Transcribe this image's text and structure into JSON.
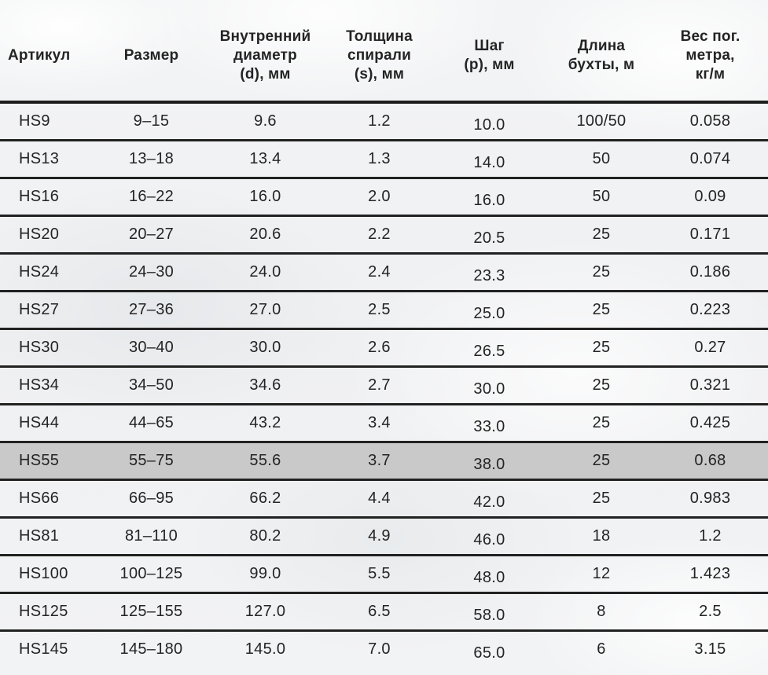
{
  "colors": {
    "highlight_row": "#c9c9c9",
    "separator_line": "#212121",
    "text": "#242424",
    "background": "#f0f1f2"
  },
  "table": {
    "columns": [
      {
        "key": "article",
        "label": "Артикул"
      },
      {
        "key": "size",
        "label": "Размер"
      },
      {
        "key": "diameter",
        "label": "Внутренний\nдиаметр\n(d), мм"
      },
      {
        "key": "thickness",
        "label": "Толщина\nспирали\n(s), мм"
      },
      {
        "key": "pitch",
        "label": "Шаг\n(p), мм"
      },
      {
        "key": "coil_length",
        "label": "Длина\nбухты, м"
      },
      {
        "key": "weight",
        "label": "Вес пог.\nметра,\nкг/м"
      }
    ],
    "highlighted_article": "HS55",
    "rows": [
      {
        "article": "HS9",
        "size": "9–15",
        "diameter": "9.6",
        "thickness": "1.2",
        "pitch": "10.0",
        "coil_length": "100/50",
        "weight": "0.058",
        "highlight": false
      },
      {
        "article": "HS13",
        "size": "13–18",
        "diameter": "13.4",
        "thickness": "1.3",
        "pitch": "14.0",
        "coil_length": "50",
        "weight": "0.074",
        "highlight": false
      },
      {
        "article": "HS16",
        "size": "16–22",
        "diameter": "16.0",
        "thickness": "2.0",
        "pitch": "16.0",
        "coil_length": "50",
        "weight": "0.09",
        "highlight": false
      },
      {
        "article": "HS20",
        "size": "20–27",
        "diameter": "20.6",
        "thickness": "2.2",
        "pitch": "20.5",
        "coil_length": "25",
        "weight": "0.171",
        "highlight": false
      },
      {
        "article": "HS24",
        "size": "24–30",
        "diameter": "24.0",
        "thickness": "2.4",
        "pitch": "23.3",
        "coil_length": "25",
        "weight": "0.186",
        "highlight": false
      },
      {
        "article": "HS27",
        "size": "27–36",
        "diameter": "27.0",
        "thickness": "2.5",
        "pitch": "25.0",
        "coil_length": "25",
        "weight": "0.223",
        "highlight": false
      },
      {
        "article": "HS30",
        "size": "30–40",
        "diameter": "30.0",
        "thickness": "2.6",
        "pitch": "26.5",
        "coil_length": "25",
        "weight": "0.27",
        "highlight": false
      },
      {
        "article": "HS34",
        "size": "34–50",
        "diameter": "34.6",
        "thickness": "2.7",
        "pitch": "30.0",
        "coil_length": "25",
        "weight": "0.321",
        "highlight": false
      },
      {
        "article": "HS44",
        "size": "44–65",
        "diameter": "43.2",
        "thickness": "3.4",
        "pitch": "33.0",
        "coil_length": "25",
        "weight": "0.425",
        "highlight": false
      },
      {
        "article": "HS55",
        "size": "55–75",
        "diameter": "55.6",
        "thickness": "3.7",
        "pitch": "38.0",
        "coil_length": "25",
        "weight": "0.68",
        "highlight": true
      },
      {
        "article": "HS66",
        "size": "66–95",
        "diameter": "66.2",
        "thickness": "4.4",
        "pitch": "42.0",
        "coil_length": "25",
        "weight": "0.983",
        "highlight": false
      },
      {
        "article": "HS81",
        "size": "81–110",
        "diameter": "80.2",
        "thickness": "4.9",
        "pitch": "46.0",
        "coil_length": "18",
        "weight": "1.2",
        "highlight": false
      },
      {
        "article": "HS100",
        "size": "100–125",
        "diameter": "99.0",
        "thickness": "5.5",
        "pitch": "48.0",
        "coil_length": "12",
        "weight": "1.423",
        "highlight": false
      },
      {
        "article": "HS125",
        "size": "125–155",
        "diameter": "127.0",
        "thickness": "6.5",
        "pitch": "58.0",
        "coil_length": "8",
        "weight": "2.5",
        "highlight": false
      },
      {
        "article": "HS145",
        "size": "145–180",
        "diameter": "145.0",
        "thickness": "7.0",
        "pitch": "65.0",
        "coil_length": "6",
        "weight": "3.15",
        "highlight": false
      }
    ]
  }
}
